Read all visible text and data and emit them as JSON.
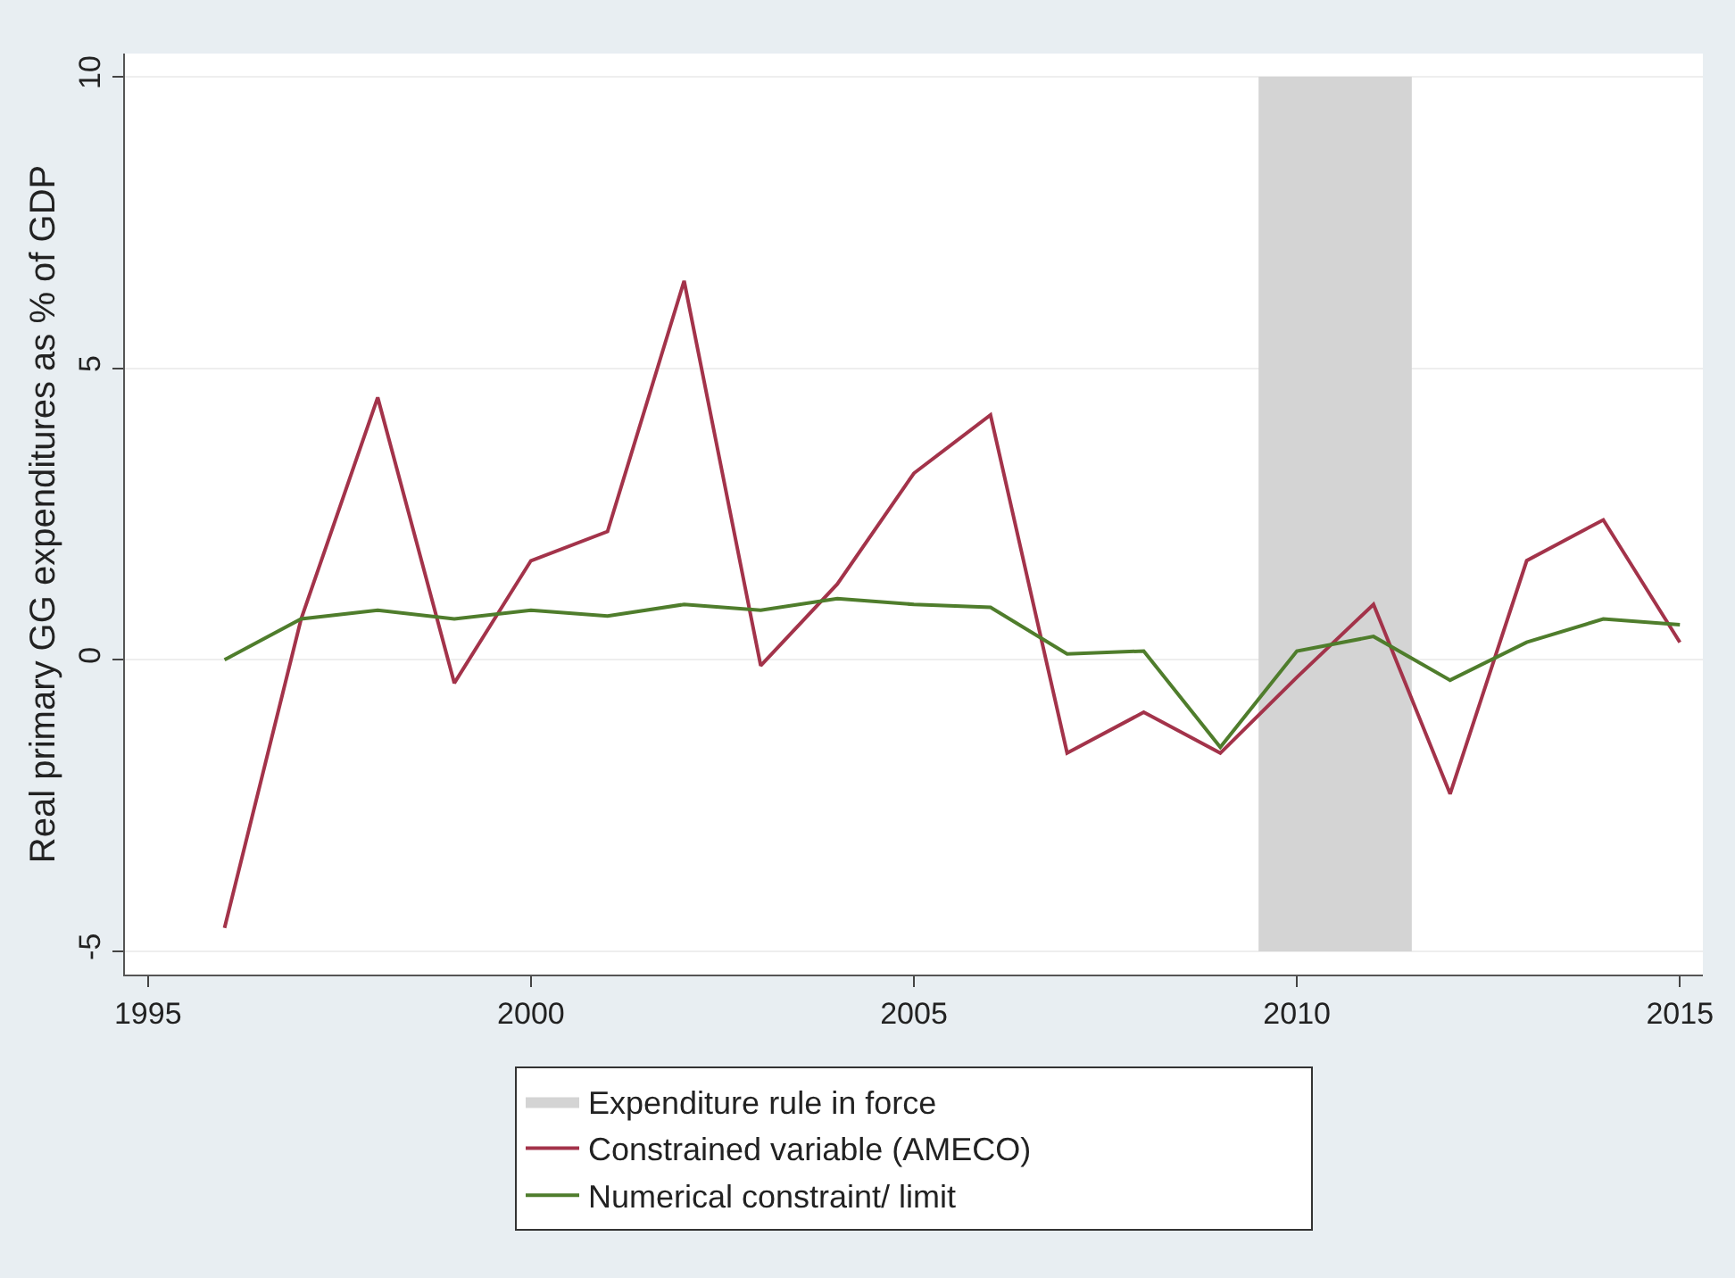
{
  "chart_data": {
    "type": "line",
    "ylabel": "Real primary GG expenditures as % of GDP",
    "x": [
      1996,
      1997,
      1998,
      1999,
      2000,
      2001,
      2002,
      2003,
      2004,
      2005,
      2006,
      2007,
      2008,
      2009,
      2010,
      2011,
      2012,
      2013,
      2014,
      2015
    ],
    "series": [
      {
        "name": "Constrained variable (AMECO)",
        "color": "#a3334a",
        "values": [
          -4.6,
          0.7,
          4.5,
          -0.4,
          1.7,
          2.2,
          6.5,
          -0.1,
          1.3,
          3.2,
          4.2,
          -1.6,
          -0.9,
          -1.6,
          -0.3,
          0.95,
          -2.3,
          1.7,
          2.4,
          0.3
        ]
      },
      {
        "name": "Numerical constraint/ limit",
        "color": "#4f7d2c",
        "values": [
          0,
          0.7,
          0.85,
          0.7,
          0.85,
          0.75,
          0.95,
          0.85,
          1.05,
          0.95,
          0.9,
          0.1,
          0.15,
          -1.5,
          0.15,
          0.4,
          -0.35,
          0.3,
          0.7,
          0.6
        ]
      }
    ],
    "bands": [
      {
        "axis": "x",
        "from": 2009.5,
        "to": 2011.5,
        "label": "Expenditure rule in force",
        "color": "#d4d4d4"
      }
    ],
    "xlim": [
      1994.7,
      2015.3
    ],
    "xticks": [
      1995,
      2000,
      2005,
      2010,
      2015
    ],
    "ylim": [
      -5.4,
      10.4
    ],
    "yticks": [
      -5,
      0,
      5,
      10
    ],
    "grid": "y",
    "legend": "bottom",
    "marker": "none",
    "line_style": "solid"
  }
}
